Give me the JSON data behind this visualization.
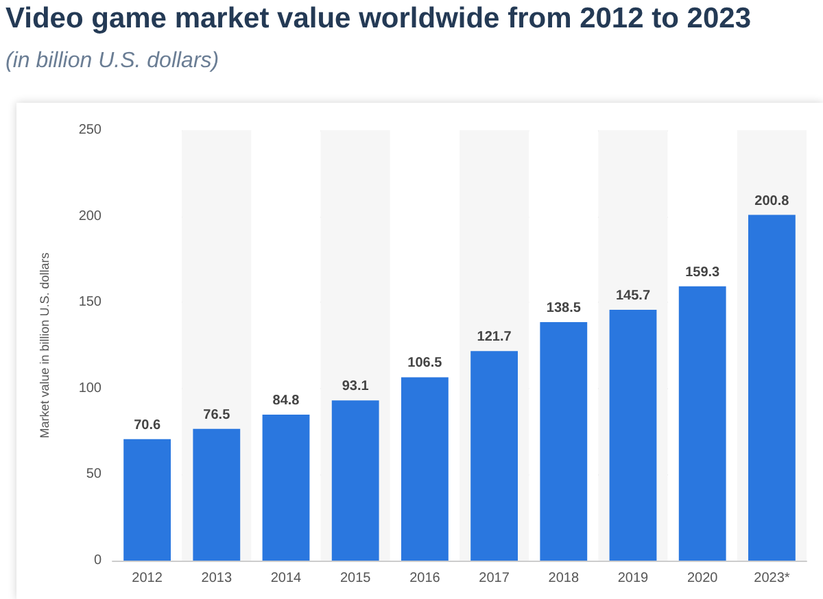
{
  "chart_data": {
    "type": "bar",
    "title": "Video game market value worldwide from 2012 to 2023",
    "subtitle": "(in billion U.S. dollars)",
    "ylabel": "Market value in billion U.S. dollars",
    "categories": [
      "2012",
      "2013",
      "2014",
      "2015",
      "2016",
      "2017",
      "2018",
      "2019",
      "2020",
      "2023*"
    ],
    "values": [
      70.6,
      76.5,
      84.8,
      93.1,
      106.5,
      121.7,
      138.5,
      145.7,
      159.3,
      200.8
    ],
    "color": "#2a77df",
    "ylim": [
      0,
      250
    ],
    "yticks": [
      0,
      50,
      100,
      150,
      200,
      250
    ],
    "grid": "y",
    "data_labels": true
  }
}
